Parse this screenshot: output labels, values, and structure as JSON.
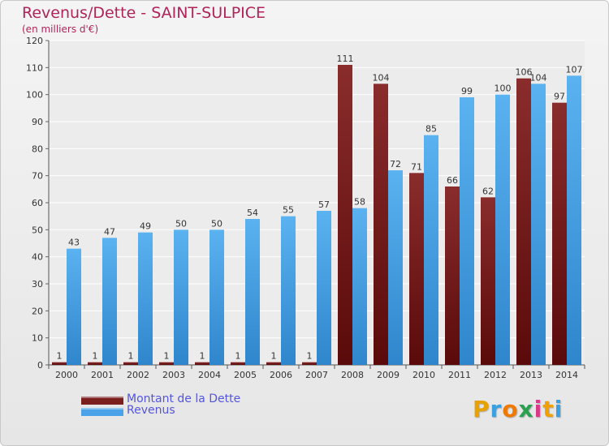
{
  "header": {
    "title": "Revenus/Dette - SAINT-SULPICE",
    "subtitle": "(en milliers d'€)"
  },
  "legend": {
    "items": [
      {
        "label": "Montant de la Dette",
        "color": "#7a1e1e"
      },
      {
        "label": "Revenus",
        "color": "#4aa3e8"
      }
    ]
  },
  "logo": {
    "text": "Proxiti",
    "letters": [
      {
        "ch": "P",
        "color": "#e8a200"
      },
      {
        "ch": "r",
        "color": "#3aa0e0"
      },
      {
        "ch": "o",
        "color": "#f07a00"
      },
      {
        "ch": "x",
        "color": "#2aa050"
      },
      {
        "ch": "i",
        "color": "#d83a8a"
      },
      {
        "ch": "t",
        "color": "#f0a000"
      },
      {
        "ch": "i",
        "color": "#3aa0e0"
      }
    ]
  },
  "colors": {
    "debt": "#7a1e1e",
    "revenue": "#4aa3e8",
    "title": "#b0245a",
    "grid": "#ffffff",
    "background": "#ececec"
  },
  "chart_data": {
    "type": "bar",
    "title": "Revenus/Dette - SAINT-SULPICE",
    "subtitle": "(en milliers d'€)",
    "xlabel": "",
    "ylabel": "",
    "ylim": [
      0,
      120
    ],
    "yticks": [
      0,
      10,
      20,
      30,
      40,
      50,
      60,
      70,
      80,
      90,
      100,
      110,
      120
    ],
    "grid": true,
    "legend_position": "bottom-left",
    "categories": [
      "2000",
      "2001",
      "2002",
      "2003",
      "2004",
      "2005",
      "2006",
      "2007",
      "2008",
      "2009",
      "2010",
      "2011",
      "2012",
      "2013",
      "2014"
    ],
    "series": [
      {
        "name": "Montant de la Dette",
        "values": [
          1,
          1,
          1,
          1,
          1,
          1,
          1,
          1,
          111,
          104,
          71,
          66,
          62,
          106,
          97
        ]
      },
      {
        "name": "Revenus",
        "values": [
          43,
          47,
          49,
          50,
          50,
          54,
          55,
          57,
          58,
          72,
          85,
          99,
          100,
          104,
          107
        ]
      }
    ]
  }
}
